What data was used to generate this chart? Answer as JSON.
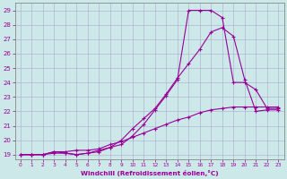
{
  "xlabel": "Windchill (Refroidissement éolien,°C)",
  "bg_color": "#cce8e8",
  "line_color": "#990099",
  "grid_color": "#aaaacc",
  "spine_color": "#888888",
  "xlim": [
    -0.5,
    23.5
  ],
  "ylim": [
    18.7,
    29.5
  ],
  "xticks": [
    0,
    1,
    2,
    3,
    4,
    5,
    6,
    7,
    8,
    9,
    10,
    11,
    12,
    13,
    14,
    15,
    16,
    17,
    18,
    19,
    20,
    21,
    22,
    23
  ],
  "yticks": [
    19,
    20,
    21,
    22,
    23,
    24,
    25,
    26,
    27,
    28,
    29
  ],
  "line1_x": [
    0,
    1,
    2,
    3,
    4,
    5,
    6,
    7,
    8,
    9,
    10,
    11,
    12,
    13,
    14,
    15,
    16,
    17,
    18,
    19,
    20,
    21,
    22,
    23
  ],
  "line1_y": [
    19,
    19,
    19,
    19.1,
    19.1,
    19.0,
    19.1,
    19.2,
    19.5,
    19.7,
    20.3,
    21.1,
    22.1,
    23.1,
    24.2,
    29.0,
    29.0,
    29.0,
    28.5,
    24.0,
    24.0,
    23.5,
    22.2,
    22.2
  ],
  "line2_x": [
    0,
    1,
    2,
    3,
    4,
    5,
    6,
    7,
    8,
    9,
    10,
    11,
    12,
    13,
    14,
    15,
    16,
    17,
    18,
    19,
    20,
    21,
    22,
    23
  ],
  "line2_y": [
    19,
    19,
    19,
    19.2,
    19.1,
    19.0,
    19.1,
    19.3,
    19.5,
    20.0,
    20.8,
    21.5,
    22.2,
    23.2,
    24.3,
    25.3,
    26.3,
    27.5,
    27.8,
    27.2,
    24.2,
    22.0,
    22.1,
    22.1
  ],
  "line3_x": [
    0,
    1,
    2,
    3,
    4,
    5,
    6,
    7,
    8,
    9,
    10,
    11,
    12,
    13,
    14,
    15,
    16,
    17,
    18,
    19,
    20,
    21,
    22,
    23
  ],
  "line3_y": [
    19,
    19,
    19,
    19.2,
    19.2,
    19.3,
    19.3,
    19.4,
    19.7,
    19.9,
    20.2,
    20.5,
    20.8,
    21.1,
    21.4,
    21.6,
    21.9,
    22.1,
    22.2,
    22.3,
    22.3,
    22.3,
    22.3,
    22.3
  ]
}
